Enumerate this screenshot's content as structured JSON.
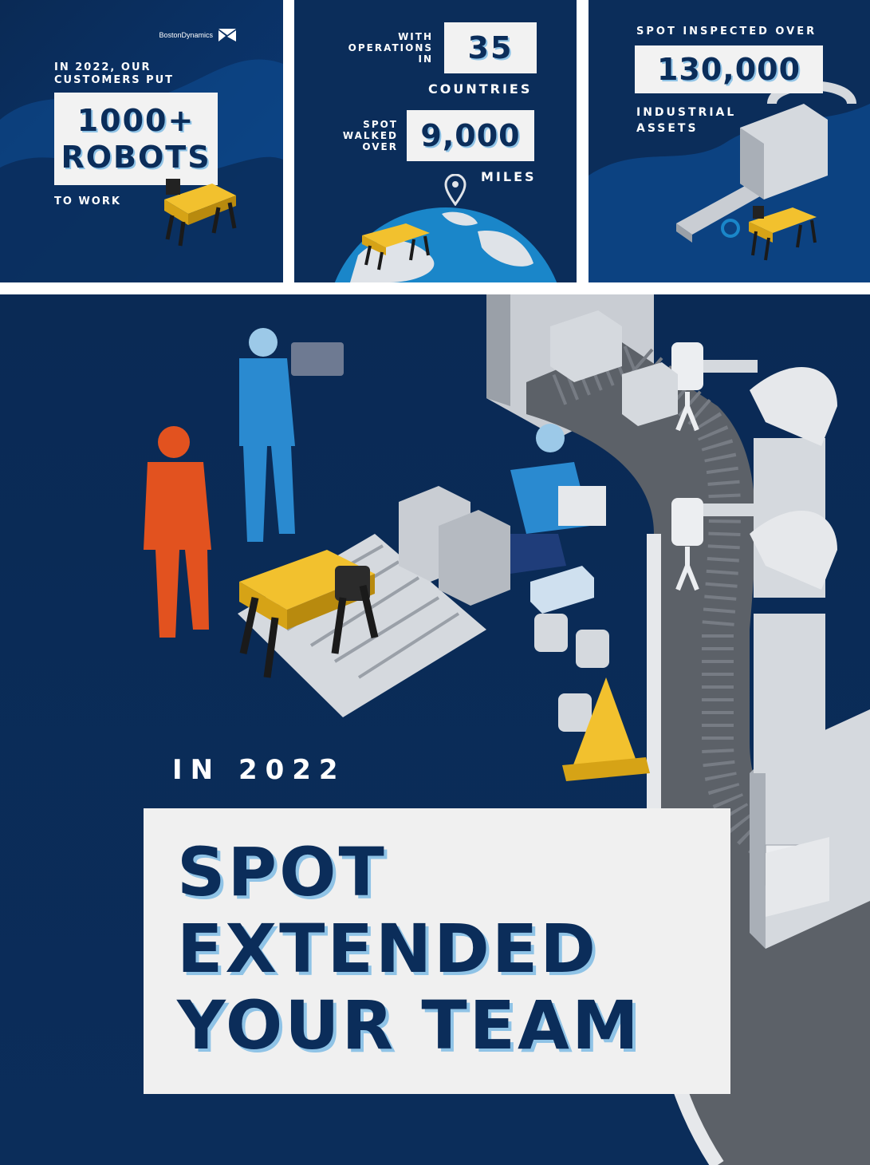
{
  "panels": {
    "robots": {
      "logo_text": "BostonDynamics",
      "line1": "IN 2022, OUR",
      "line2": "CUSTOMERS PUT",
      "box_line1": "1000+",
      "box_line2": "ROBOTS",
      "footer": "TO WORK"
    },
    "countries": {
      "label_line1": "WITH",
      "label_line2": "OPERATIONS",
      "label_line3": "IN",
      "count": "35",
      "count_unit": "COUNTRIES",
      "walk_line1": "SPOT",
      "walk_line2": "WALKED",
      "walk_line3": "OVER",
      "miles": "9,000",
      "miles_unit": "MILES"
    },
    "assets": {
      "intro": "SPOT INSPECTED OVER",
      "count": "130,000",
      "unit_line1": "INDUSTRIAL",
      "unit_line2": "ASSETS"
    }
  },
  "hero": {
    "year_label": "IN 2022",
    "headline_line1": "SPOT",
    "headline_line2": "EXTENDED",
    "headline_line3": "YOUR TEAM"
  },
  "colors": {
    "navy": "#0b2d5a",
    "accent_blue": "#8fc3e6",
    "robot_yellow": "#f2c12e",
    "box_gray": "#f2f2f2"
  }
}
